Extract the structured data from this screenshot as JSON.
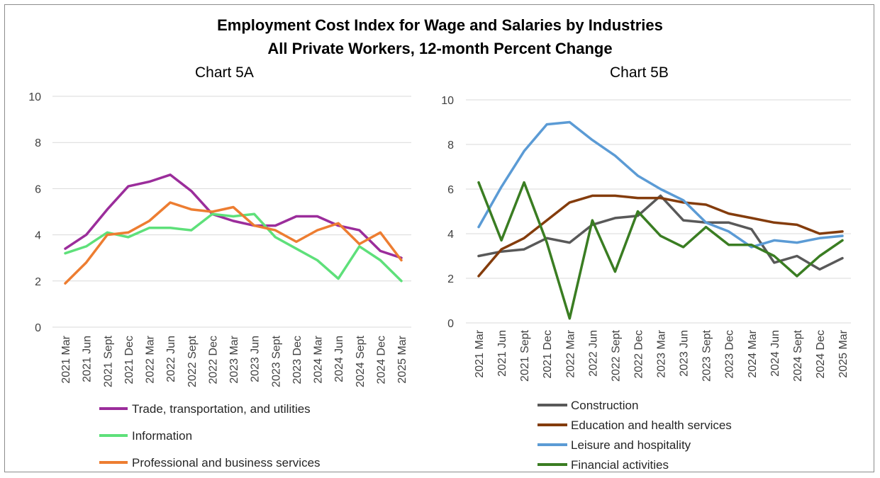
{
  "header": {
    "title_line1": "Employment Cost Index for Wage and Salaries by Industries",
    "title_line2": "All Private Workers, 12-month Percent Change"
  },
  "chart_data": [
    {
      "type": "line",
      "title": "Chart 5A",
      "categories": [
        "2021 Mar",
        "2021 Jun",
        "2021 Sept",
        "2021 Dec",
        "2022 Mar",
        "2022 Jun",
        "2022 Sept",
        "2022 Dec",
        "2023 Mar",
        "2023 Jun",
        "2023 Sept",
        "2023 Dec",
        "2024 Mar",
        "2024 Jun",
        "2024 Sept",
        "2024 Dec",
        "2025 Mar"
      ],
      "ylim": [
        0,
        10
      ],
      "yticks": [
        0,
        2,
        4,
        6,
        8,
        10
      ],
      "grid": true,
      "legend_position": "bottom",
      "series": [
        {
          "name": "Trade, transportation, and utilities",
          "color": "#9b2d9b",
          "values": [
            3.4,
            4.0,
            5.1,
            6.1,
            6.3,
            6.6,
            5.9,
            4.9,
            4.6,
            4.4,
            4.4,
            4.8,
            4.8,
            4.4,
            4.2,
            3.3,
            3.0
          ]
        },
        {
          "name": "Information",
          "color": "#5ee07a",
          "values": [
            3.2,
            3.5,
            4.1,
            3.9,
            4.3,
            4.3,
            4.2,
            4.9,
            4.8,
            4.9,
            3.9,
            3.4,
            2.9,
            2.1,
            3.5,
            2.9,
            2.0
          ]
        },
        {
          "name": "Professional and business services",
          "color": "#ed7d31",
          "values": [
            1.9,
            2.8,
            4.0,
            4.1,
            4.6,
            5.4,
            5.1,
            5.0,
            5.2,
            4.4,
            4.2,
            3.7,
            4.2,
            4.5,
            3.6,
            4.1,
            2.9
          ]
        }
      ]
    },
    {
      "type": "line",
      "title": "Chart 5B",
      "categories": [
        "2021 Mar",
        "2021 Jun",
        "2021 Sept",
        "2021 Dec",
        "2022 Mar",
        "2022 Jun",
        "2022 Sept",
        "2022 Dec",
        "2023 Mar",
        "2023 Jun",
        "2023 Sept",
        "2023 Dec",
        "2024 Mar",
        "2024 Jun",
        "2024 Sept",
        "2024 Dec",
        "2025 Mar"
      ],
      "ylim": [
        0,
        10
      ],
      "yticks": [
        0,
        2,
        4,
        6,
        8,
        10
      ],
      "grid": true,
      "legend_position": "bottom",
      "series": [
        {
          "name": "Construction",
          "color": "#595959",
          "values": [
            3.0,
            3.2,
            3.3,
            3.8,
            3.6,
            4.4,
            4.7,
            4.8,
            5.7,
            4.6,
            4.5,
            4.5,
            4.2,
            2.7,
            3.0,
            2.4,
            2.9
          ]
        },
        {
          "name": "Education and health services",
          "color": "#843c0c",
          "values": [
            2.1,
            3.3,
            3.8,
            4.6,
            5.4,
            5.7,
            5.7,
            5.6,
            5.6,
            5.4,
            5.3,
            4.9,
            4.7,
            4.5,
            4.4,
            4.0,
            4.1
          ]
        },
        {
          "name": "Leisure and hospitality",
          "color": "#5b9bd5",
          "values": [
            4.3,
            6.1,
            7.7,
            8.9,
            9.0,
            8.2,
            7.5,
            6.6,
            6.0,
            5.5,
            4.5,
            4.1,
            3.4,
            3.7,
            3.6,
            3.8,
            3.9
          ]
        },
        {
          "name": "Financial activities",
          "color": "#3a7d22",
          "values": [
            6.3,
            3.7,
            6.3,
            3.6,
            0.2,
            4.6,
            2.3,
            5.0,
            3.9,
            3.4,
            4.3,
            3.5,
            3.5,
            3.0,
            2.1,
            3.0,
            3.7
          ]
        }
      ]
    }
  ]
}
